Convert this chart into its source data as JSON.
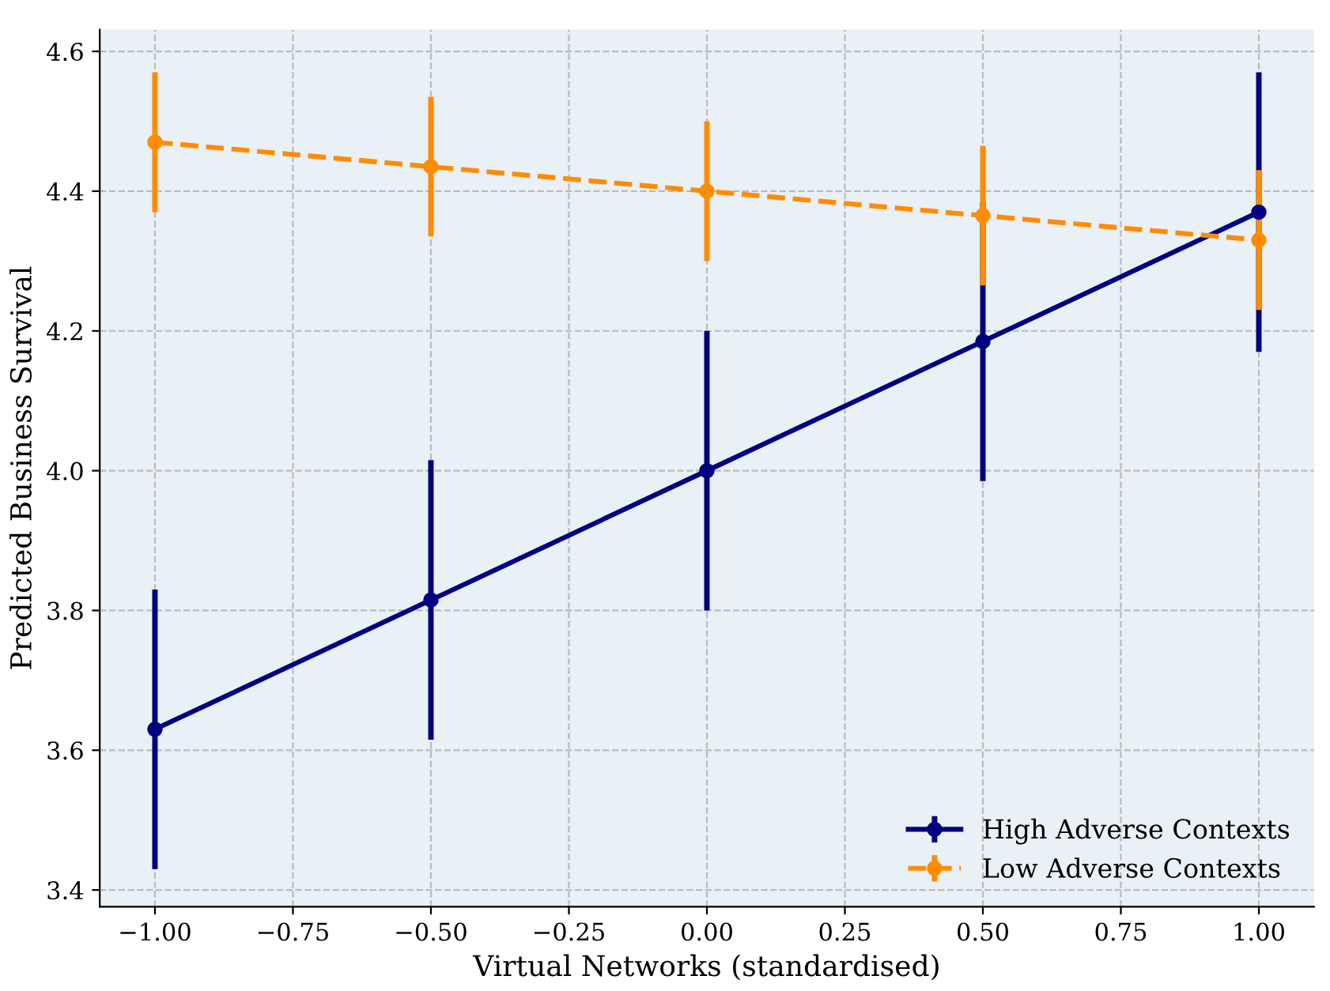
{
  "chart_data": {
    "type": "line",
    "xlabel": "Virtual Networks (standardised)",
    "ylabel": "Predicted Business Survival",
    "x": [
      -1.0,
      -0.5,
      0.0,
      0.5,
      1.0
    ],
    "series": [
      {
        "name": "High Adverse Contexts",
        "color": "#000080",
        "values": [
          3.63,
          3.815,
          4.0,
          4.185,
          4.37
        ],
        "errors": [
          0.2,
          0.2,
          0.2,
          0.2,
          0.2
        ],
        "line_style": "solid"
      },
      {
        "name": "Low Adverse Contexts",
        "color": "#ff8c00",
        "values": [
          4.47,
          4.435,
          4.4,
          4.365,
          4.33
        ],
        "errors": [
          0.1,
          0.1,
          0.1,
          0.1,
          0.1
        ],
        "line_style": "dashed"
      }
    ],
    "marker": "circle",
    "xlim": [
      -1.1,
      1.1
    ],
    "ylim": [
      3.376,
      4.631
    ],
    "xticks": [
      {
        "value": -1.0,
        "label": "−1.00"
      },
      {
        "value": -0.75,
        "label": "−0.75"
      },
      {
        "value": -0.5,
        "label": "−0.50"
      },
      {
        "value": -0.25,
        "label": "−0.25"
      },
      {
        "value": 0.0,
        "label": "0.00"
      },
      {
        "value": 0.25,
        "label": "0.25"
      },
      {
        "value": 0.5,
        "label": "0.50"
      },
      {
        "value": 0.75,
        "label": "0.75"
      },
      {
        "value": 1.0,
        "label": "1.00"
      }
    ],
    "yticks": [
      {
        "value": 3.4,
        "label": "3.4"
      },
      {
        "value": 3.6,
        "label": "3.6"
      },
      {
        "value": 3.8,
        "label": "3.8"
      },
      {
        "value": 4.0,
        "label": "4.0"
      },
      {
        "value": 4.2,
        "label": "4.2"
      },
      {
        "value": 4.4,
        "label": "4.4"
      },
      {
        "value": 4.6,
        "label": "4.6"
      }
    ],
    "grid": true,
    "legend": "bottom right"
  }
}
